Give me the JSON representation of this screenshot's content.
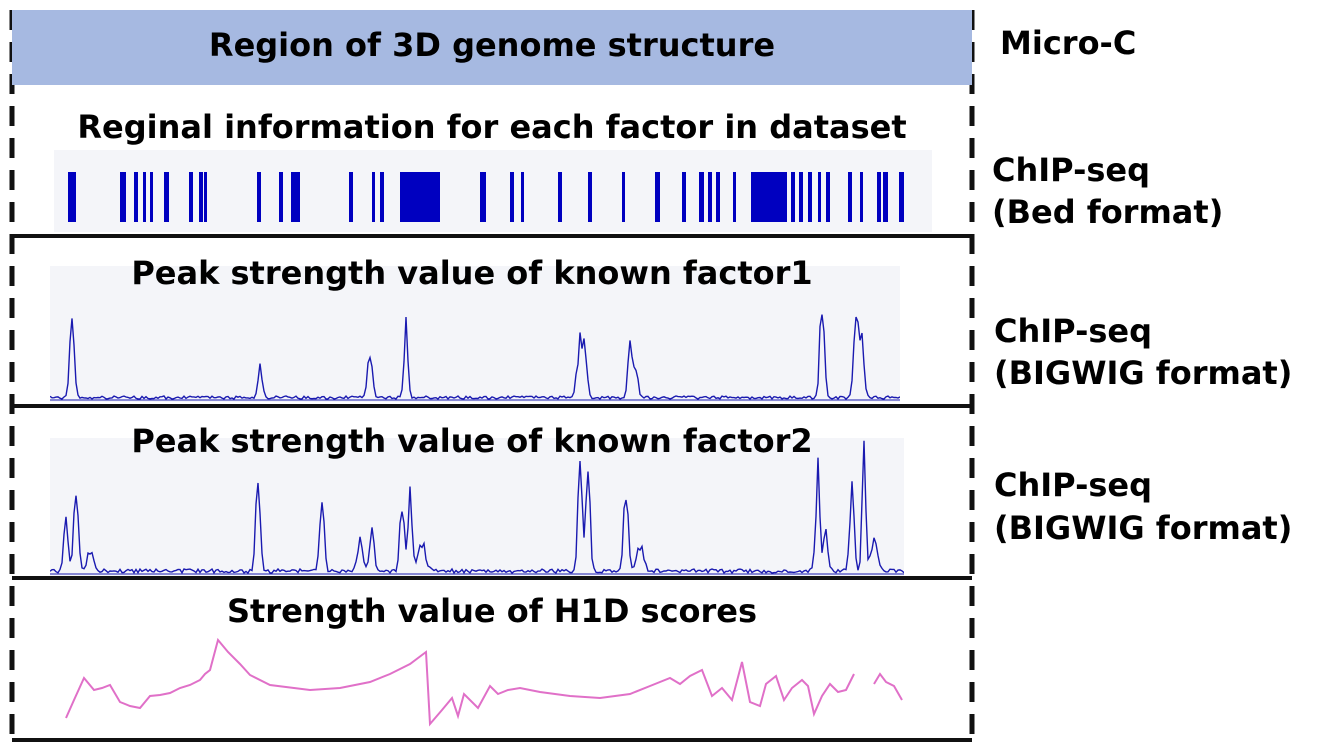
{
  "header": {
    "title": "Region of 3D genome structure",
    "side_label": "Micro-C"
  },
  "tracks": [
    {
      "title": "Reginal information for each factor in dataset",
      "side_label_line1": "ChIP-seq",
      "side_label_line2": "(Bed format)"
    },
    {
      "title": "Peak strength value of known factor1",
      "side_label_line1": "ChIP-seq",
      "side_label_line2": "(BIGWIG format)"
    },
    {
      "title": "Peak strength value of known factor2",
      "side_label_line1": "ChIP-seq",
      "side_label_line2": "(BIGWIG format)"
    },
    {
      "title": "Strength value of H1D scores"
    }
  ],
  "colors": {
    "header_fill": "#a6b9e1",
    "bed_bar": "#0000c0",
    "bigwig_line": "#1a1ab0",
    "h1d_line": "#e070c8"
  }
}
